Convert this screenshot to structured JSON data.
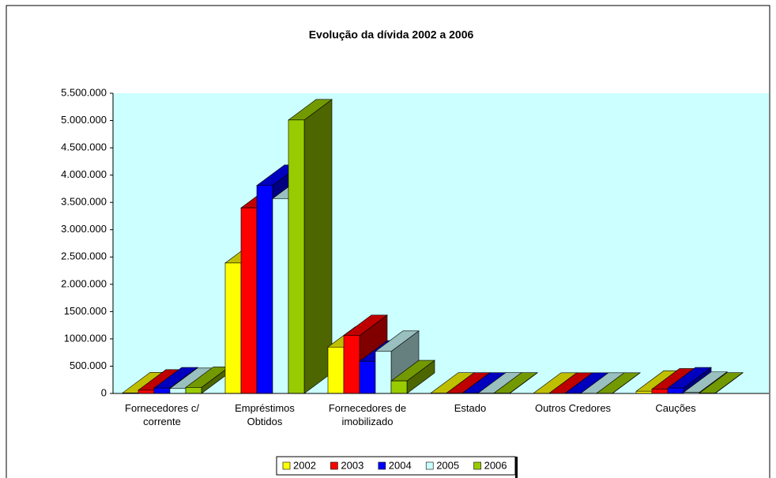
{
  "chart_data": {
    "type": "bar3d",
    "title": "Evolução da dívida 2002 a 2006",
    "categories": [
      "Fornecedores c/ corrente",
      "Empréstimos Obtidos",
      "Fornecedores de imobilizado",
      "Estado",
      "Outros Credores",
      "Cauções"
    ],
    "series": [
      {
        "name": "2002",
        "color": "#ffff00",
        "values": [
          10000,
          2390000,
          850000,
          5000,
          3000,
          40000
        ]
      },
      {
        "name": "2003",
        "color": "#ff0000",
        "values": [
          60000,
          3400000,
          1060000,
          5000,
          3000,
          80000
        ]
      },
      {
        "name": "2004",
        "color": "#0000ff",
        "values": [
          100000,
          3810000,
          590000,
          5000,
          3000,
          100000
        ]
      },
      {
        "name": "2005",
        "color": "#ccffff",
        "values": [
          90000,
          3570000,
          770000,
          5000,
          3000,
          20000
        ]
      },
      {
        "name": "2006",
        "color": "#99cc00",
        "values": [
          110000,
          5010000,
          230000,
          5000,
          3000,
          5000
        ]
      }
    ],
    "ylim": [
      0,
      5500000
    ],
    "yticks": [
      0,
      {
        "value": 500000,
        "label": "500.000"
      },
      {
        "value": 1000000,
        "label": "1000.000"
      },
      {
        "value": 1500000,
        "label": "1500.000"
      },
      {
        "value": 2000000,
        "label": "2.000.000"
      },
      {
        "value": 2500000,
        "label": "2.500.000"
      },
      {
        "value": 3000000,
        "label": "3.000.000"
      },
      {
        "value": 3500000,
        "label": "3.500.000"
      },
      {
        "value": 4000000,
        "label": "4.000.000"
      },
      {
        "value": 4500000,
        "label": "4.500.000"
      },
      {
        "value": 5000000,
        "label": "5.000.000"
      },
      {
        "value": 5500000,
        "label": "5.500.000"
      }
    ],
    "legend": "bottom",
    "wall_color": "#ccffff"
  }
}
